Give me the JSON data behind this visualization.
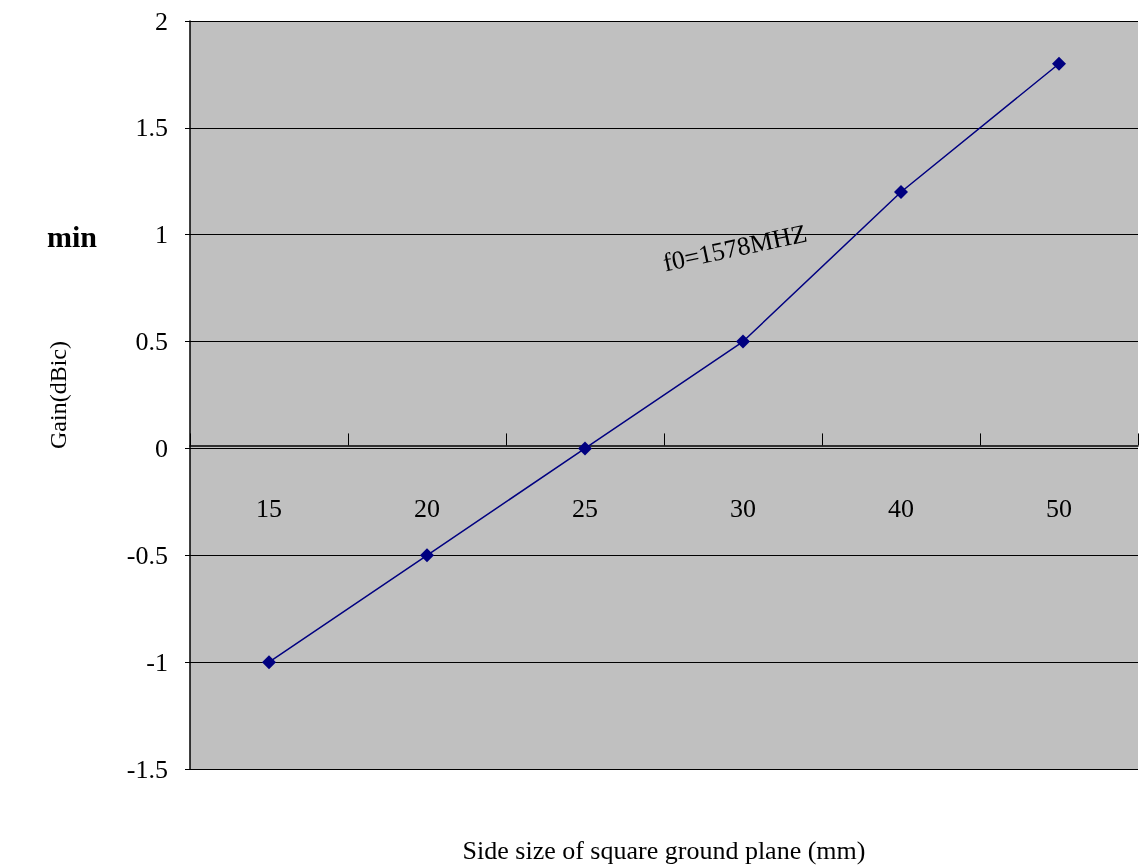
{
  "chart_data": {
    "type": "line",
    "xlabel": "Side size of square ground plane (mm)",
    "ylabel": "Gain(dBic)",
    "annotations": [
      "f0=1578MHZ",
      "min"
    ],
    "categories": [
      "15",
      "20",
      "25",
      "30",
      "40",
      "50"
    ],
    "series": [
      {
        "color": "#000080",
        "values": [
          -1,
          -0.5,
          0,
          0.5,
          1.2,
          1.8
        ]
      }
    ],
    "ylim": [
      -1.5,
      2
    ],
    "yticks": [
      -1.5,
      -1,
      -0.5,
      0,
      0.5,
      1,
      1.5,
      2
    ],
    "grid": "y",
    "marker": "diamond",
    "line_style": "solid"
  }
}
